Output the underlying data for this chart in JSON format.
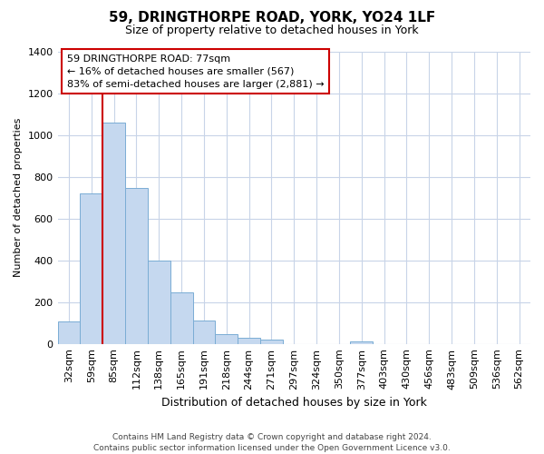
{
  "title": "59, DRINGTHORPE ROAD, YORK, YO24 1LF",
  "subtitle": "Size of property relative to detached houses in York",
  "xlabel": "Distribution of detached houses by size in York",
  "ylabel": "Number of detached properties",
  "bar_values": [
    108,
    720,
    1058,
    748,
    400,
    245,
    110,
    48,
    28,
    22,
    0,
    0,
    0,
    10,
    0,
    0,
    0,
    0,
    0,
    0,
    0
  ],
  "bar_labels": [
    "32sqm",
    "59sqm",
    "85sqm",
    "112sqm",
    "138sqm",
    "165sqm",
    "191sqm",
    "218sqm",
    "244sqm",
    "271sqm",
    "297sqm",
    "324sqm",
    "350sqm",
    "377sqm",
    "403sqm",
    "430sqm",
    "456sqm",
    "483sqm",
    "509sqm",
    "536sqm",
    "562sqm"
  ],
  "bar_color": "#c5d8ef",
  "bar_edge_color": "#7aadd4",
  "vline_x": 1.5,
  "vline_color": "#cc0000",
  "ylim": [
    0,
    1400
  ],
  "yticks": [
    0,
    200,
    400,
    600,
    800,
    1000,
    1200,
    1400
  ],
  "annotation_text": "59 DRINGTHORPE ROAD: 77sqm\n← 16% of detached houses are smaller (567)\n83% of semi-detached houses are larger (2,881) →",
  "annotation_box_color": "#ffffff",
  "annotation_box_edge": "#cc0000",
  "footer": "Contains HM Land Registry data © Crown copyright and database right 2024.\nContains public sector information licensed under the Open Government Licence v3.0.",
  "background_color": "#ffffff",
  "grid_color": "#c8d4e8",
  "title_fontsize": 11,
  "subtitle_fontsize": 9,
  "ylabel_fontsize": 8,
  "xlabel_fontsize": 9,
  "tick_fontsize": 8,
  "annotation_fontsize": 8,
  "footer_fontsize": 6.5
}
